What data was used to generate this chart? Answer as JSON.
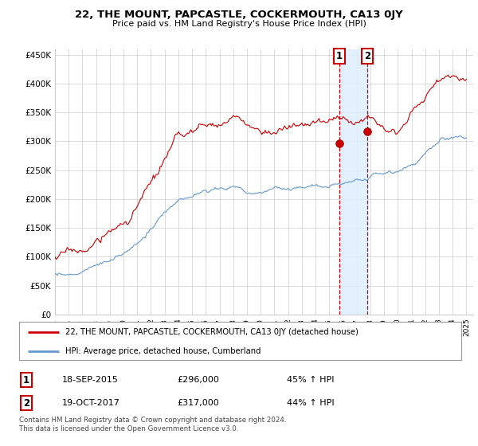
{
  "title": "22, THE MOUNT, PAPCASTLE, COCKERMOUTH, CA13 0JY",
  "subtitle": "Price paid vs. HM Land Registry's House Price Index (HPI)",
  "ylabel_ticks": [
    "£0",
    "£50K",
    "£100K",
    "£150K",
    "£200K",
    "£250K",
    "£300K",
    "£350K",
    "£400K",
    "£450K"
  ],
  "ytick_vals": [
    0,
    50000,
    100000,
    150000,
    200000,
    250000,
    300000,
    350000,
    400000,
    450000
  ],
  "xlim_start": 1995.0,
  "xlim_end": 2025.5,
  "ylim_min": 0,
  "ylim_max": 460000,
  "sale1_date": 2015.72,
  "sale1_price": 296000,
  "sale2_date": 2017.8,
  "sale2_price": 317000,
  "sale1_label": "1",
  "sale2_label": "2",
  "legend_line1": "22, THE MOUNT, PAPCASTLE, COCKERMOUTH, CA13 0JY (detached house)",
  "legend_line2": "HPI: Average price, detached house, Cumberland",
  "annotation1_date": "18-SEP-2015",
  "annotation1_price": "£296,000",
  "annotation1_hpi": "45% ↑ HPI",
  "annotation2_date": "19-OCT-2017",
  "annotation2_price": "£317,000",
  "annotation2_hpi": "44% ↑ HPI",
  "footnote": "Contains HM Land Registry data © Crown copyright and database right 2024.\nThis data is licensed under the Open Government Licence v3.0.",
  "line_color_red": "#cc0000",
  "line_color_blue": "#6699cc",
  "shade_color": "#ddeeff",
  "grid_color": "#cccccc",
  "background_color": "#ffffff"
}
